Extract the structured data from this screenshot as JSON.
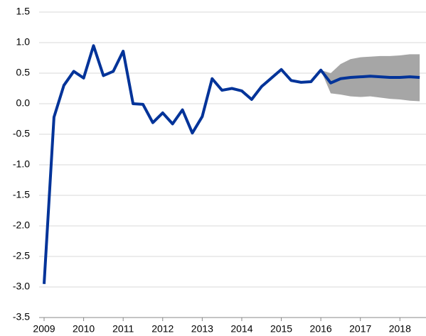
{
  "chart_data": {
    "type": "line",
    "x": [
      2009,
      2009.25,
      2009.5,
      2009.75,
      2010,
      2010.25,
      2010.5,
      2010.75,
      2011,
      2011.25,
      2011.5,
      2011.75,
      2012,
      2012.25,
      2012.5,
      2012.75,
      2013,
      2013.25,
      2013.5,
      2013.75,
      2014,
      2014.25,
      2014.5,
      2014.75,
      2015,
      2015.25,
      2015.5,
      2015.75,
      2016,
      2016.25,
      2016.5,
      2016.75,
      2017,
      2017.25,
      2017.5,
      2017.75,
      2018,
      2018.25,
      2018.5
    ],
    "series": [
      {
        "color": "#003399",
        "values": [
          -2.95,
          -0.22,
          0.3,
          0.53,
          0.42,
          0.95,
          0.46,
          0.53,
          0.86,
          0.0,
          -0.01,
          -0.31,
          -0.15,
          -0.33,
          -0.1,
          -0.48,
          -0.21,
          0.41,
          0.22,
          0.25,
          0.21,
          0.07,
          0.28,
          0.42,
          0.56,
          0.38,
          0.35,
          0.36,
          0.55,
          0.34,
          0.41,
          0.43,
          0.44,
          0.45,
          0.44,
          0.43,
          0.43,
          0.44,
          0.43
        ]
      }
    ],
    "band": {
      "color": "#a6a6a6",
      "x": [
        2016,
        2016.25,
        2016.5,
        2016.75,
        2017,
        2017.25,
        2017.5,
        2017.75,
        2018,
        2018.25,
        2018.5
      ],
      "lower": [
        0.55,
        0.17,
        0.15,
        0.12,
        0.11,
        0.12,
        0.1,
        0.08,
        0.07,
        0.05,
        0.04
      ],
      "upper": [
        0.55,
        0.5,
        0.65,
        0.73,
        0.76,
        0.77,
        0.78,
        0.78,
        0.79,
        0.81,
        0.81
      ]
    },
    "xlim": [
      2008.874,
      2018.66
    ],
    "xticks": [
      2009,
      2010,
      2011,
      2012,
      2013,
      2014,
      2015,
      2016,
      2017,
      2018
    ],
    "ylim": [
      -3.5,
      1.5
    ],
    "yticks": [
      1.5,
      {
        "value": 1,
        "label": "1.0"
      },
      0.5,
      {
        "value": 0,
        "label": "0.0"
      },
      -0.5,
      {
        "value": -1,
        "label": "-1.0"
      },
      -1.5,
      {
        "value": -2,
        "label": "-2.0"
      },
      -2.5,
      {
        "value": -3,
        "label": "-3.0"
      },
      -3.5
    ],
    "grid": true
  }
}
